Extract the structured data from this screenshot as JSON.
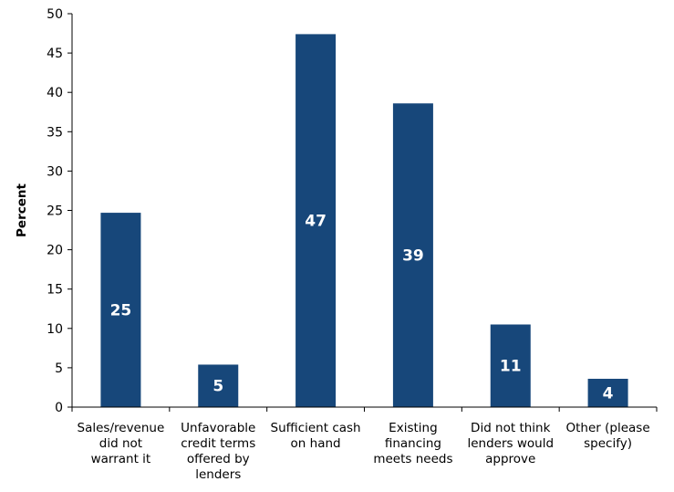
{
  "chart_data": {
    "type": "bar",
    "title": "",
    "xlabel": "",
    "ylabel": "Percent",
    "ylim": [
      0,
      50
    ],
    "yticks": [
      0,
      5,
      10,
      15,
      20,
      25,
      30,
      35,
      40,
      45,
      50
    ],
    "grid": false,
    "categories": [
      [
        "Sales/revenue",
        "did not",
        "warrant it"
      ],
      [
        "Unfavorable",
        "credit terms",
        "offered by",
        "lenders"
      ],
      [
        "Sufficient cash",
        "on hand"
      ],
      [
        "Existing",
        "financing",
        "meets needs"
      ],
      [
        "Did not think",
        "lenders would",
        "approve"
      ],
      [
        "Other (please",
        "specify)"
      ]
    ],
    "values": [
      24.7,
      5.4,
      47.4,
      38.6,
      10.5,
      3.6
    ],
    "data_labels": [
      "25",
      "5",
      "47",
      "39",
      "11",
      "4"
    ],
    "bar_color": "#17477a",
    "axis_color": "#000000"
  }
}
